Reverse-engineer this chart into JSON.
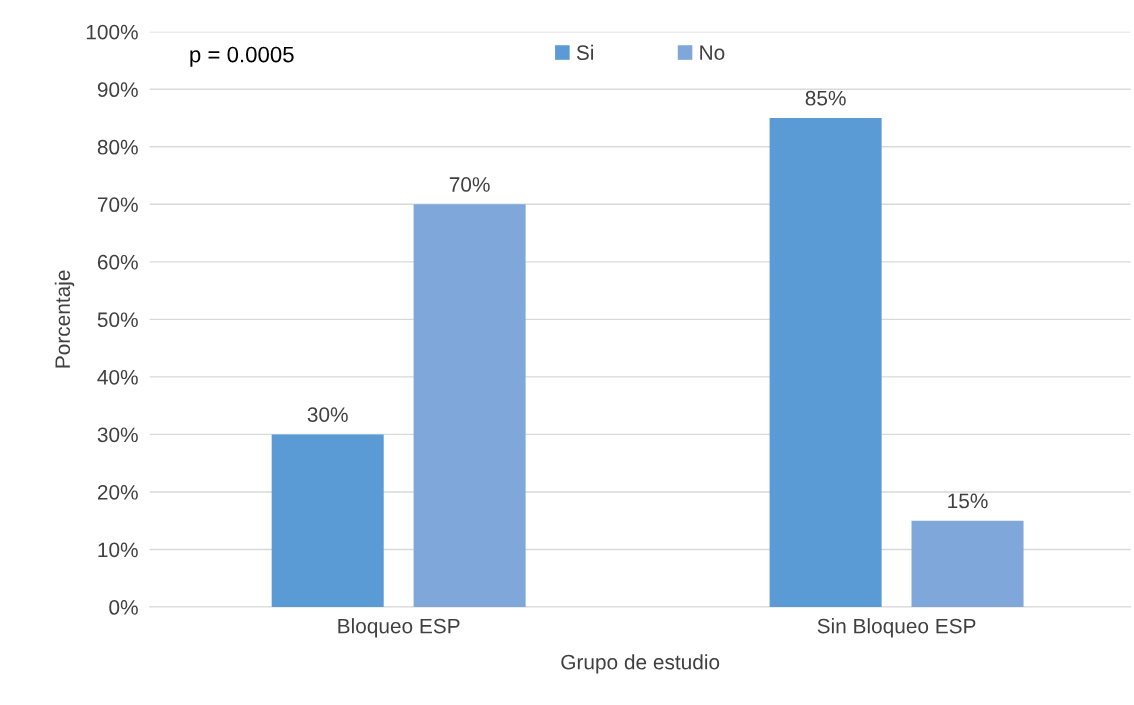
{
  "chart_data": {
    "type": "bar",
    "xlabel": "Grupo de estudio",
    "ylabel": "Porcentaje",
    "categories": [
      "Bloqueo ESP",
      "Sin Bloqueo ESP"
    ],
    "series": [
      {
        "name": "Si",
        "color": "#5b9bd5",
        "values": [
          30,
          85
        ],
        "value_labels": [
          "30%",
          "85%"
        ]
      },
      {
        "name": "No",
        "color": "#7fa7d9",
        "values": [
          70,
          15
        ],
        "value_labels": [
          "70%",
          "15%"
        ]
      }
    ],
    "ylim": [
      0,
      100
    ],
    "yticks": [
      {
        "value": 0,
        "label": "0%"
      },
      {
        "value": 10,
        "label": "10%"
      },
      {
        "value": 20,
        "label": "20%"
      },
      {
        "value": 30,
        "label": "30%"
      },
      {
        "value": 40,
        "label": "40%"
      },
      {
        "value": 50,
        "label": "50%"
      },
      {
        "value": 60,
        "label": "60%"
      },
      {
        "value": 70,
        "label": "70%"
      },
      {
        "value": 80,
        "label": "80%"
      },
      {
        "value": 90,
        "label": "90%"
      },
      {
        "value": 100,
        "label": "100%"
      }
    ],
    "grid": "y",
    "legend": "top",
    "annotations": [
      "p = 0.0005"
    ]
  }
}
